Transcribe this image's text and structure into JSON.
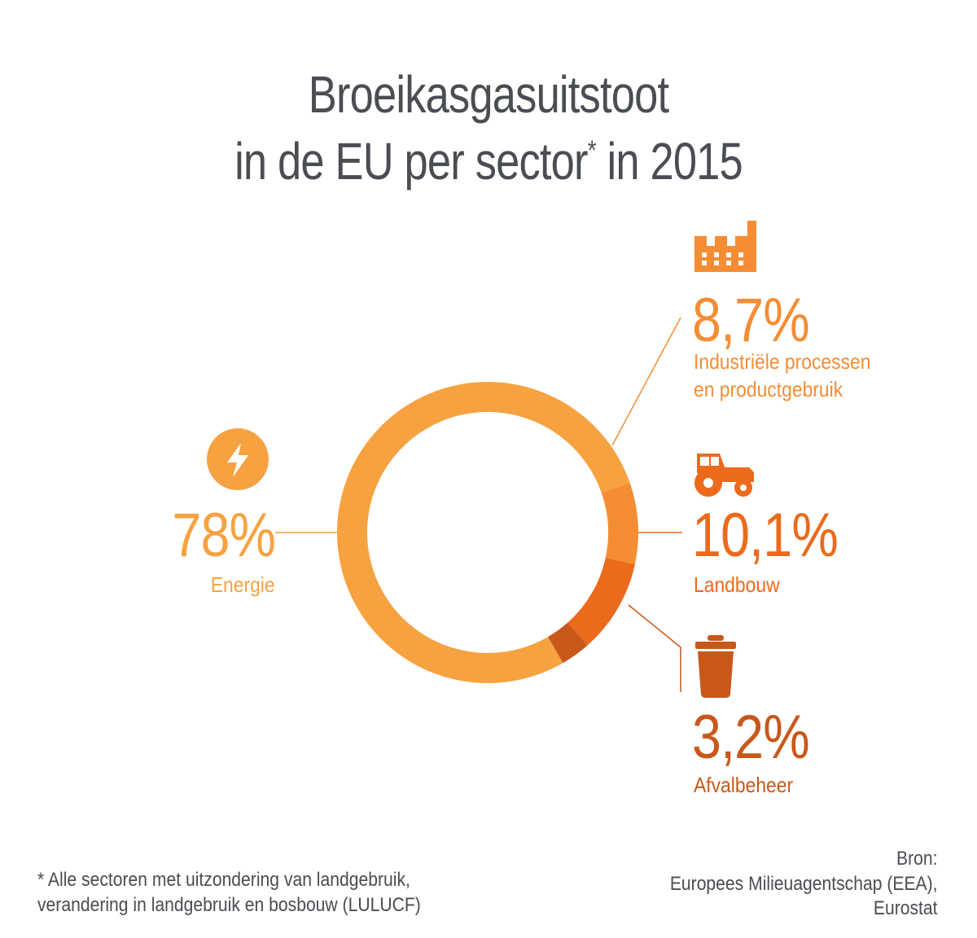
{
  "title": {
    "line1": "Broeikasgasuitstoot",
    "line2": "in de EU per sector",
    "asterisk": "*",
    "line2_end": " in 2015"
  },
  "chart_data": {
    "type": "pie",
    "style": "donut",
    "title": "Broeikasgasuitstoot in de EU per sector* in 2015",
    "slices": [
      {
        "label": "Energie",
        "value": 78,
        "display": "78%",
        "color": "#f7a240",
        "icon": "lightning-bolt-icon"
      },
      {
        "label": "Industriële processen en productgebruik",
        "value": 8.7,
        "display": "8,7%",
        "color": "#f48d34",
        "icon": "factory-icon"
      },
      {
        "label": "Landbouw",
        "value": 10.1,
        "display": "10,1%",
        "color": "#ec6a1c",
        "icon": "tractor-icon"
      },
      {
        "label": "Afvalbeheer",
        "value": 3.2,
        "display": "3,2%",
        "color": "#c8581a",
        "icon": "trash-can-icon"
      }
    ]
  },
  "labels": {
    "energie": {
      "pct": "78%",
      "name": "Energie"
    },
    "industrie": {
      "pct": "8,7%",
      "line1": "Industriële processen",
      "line2": "en productgebruik"
    },
    "landbouw": {
      "pct": "10,1%",
      "name": "Landbouw"
    },
    "afval": {
      "pct": "3,2%",
      "name": "Afvalbeheer"
    }
  },
  "footnote": {
    "line1": "* Alle sectoren met uitzondering van landgebruik,",
    "line2": "verandering in landgebruik en bosbouw (LULUCF)"
  },
  "source": {
    "line1": "Bron:",
    "line2": "Europees Milieuagentschap (EEA),",
    "line3": "Eurostat"
  },
  "colors": {
    "title": "#4a4d52",
    "energie": "#f7a240",
    "industrie": "#f48d34",
    "landbouw": "#ec6a1c",
    "afval": "#c8581a"
  }
}
